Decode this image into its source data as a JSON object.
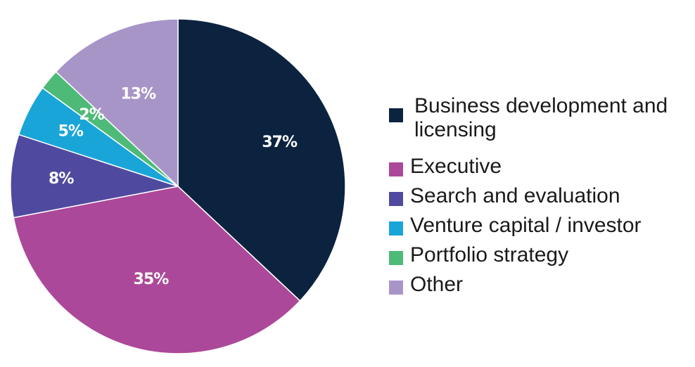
{
  "chart_data": {
    "type": "pie",
    "categories": [
      "Business development and licensing",
      "Executive",
      "Search and evaluation",
      "Venture capital / investor",
      "Portfolio strategy",
      "Other"
    ],
    "values": [
      37,
      35,
      8,
      5,
      2,
      13
    ],
    "labels": [
      "37%",
      "35%",
      "8%",
      "5%",
      "2%",
      "13%"
    ],
    "colors": [
      "#0c2340",
      "#ac4899",
      "#4f4a9f",
      "#1aa5d9",
      "#4dba77",
      "#a895c8"
    ],
    "legend_position": "right",
    "title": ""
  }
}
